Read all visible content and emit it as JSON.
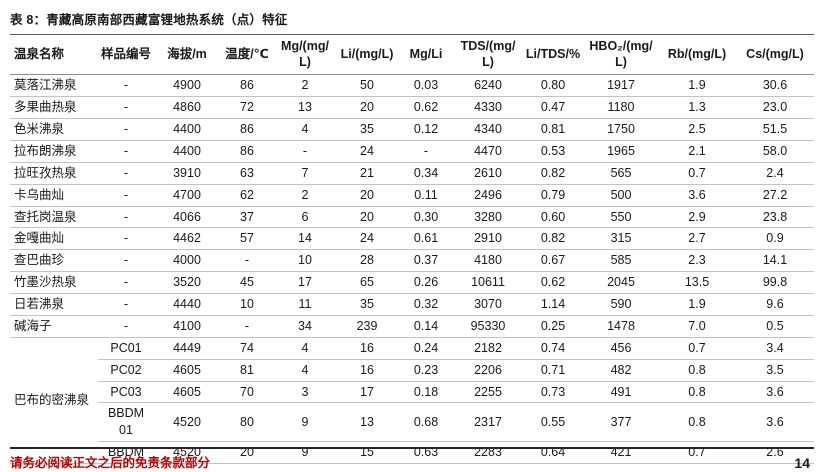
{
  "title": "表 8：青藏高原南部西藏富锂地热系统（点）特征",
  "table": {
    "headers": [
      "温泉名称",
      "样品编号",
      "海拔/m",
      "温度/℃",
      "Mg/(mg/L)",
      "Li/(mg/L)",
      "Mg/Li",
      "TDS/(mg/L)",
      "Li/TDS/%",
      "HBO₂/(mg/L)",
      "Rb/(mg/L)",
      "Cs/(mg/L)"
    ],
    "rows": [
      [
        "莫落江沸泉",
        "-",
        "4900",
        "86",
        "2",
        "50",
        "0.03",
        "6240",
        "0.80",
        "1917",
        "1.9",
        "30.6"
      ],
      [
        "多果曲热泉",
        "-",
        "4860",
        "72",
        "13",
        "20",
        "0.62",
        "4330",
        "0.47",
        "1180",
        "1.3",
        "23.0"
      ],
      [
        "色米沸泉",
        "-",
        "4400",
        "86",
        "4",
        "35",
        "0.12",
        "4340",
        "0.81",
        "1750",
        "2.5",
        "51.5"
      ],
      [
        "拉布朗沸泉",
        "-",
        "4400",
        "86",
        "-",
        "24",
        "-",
        "4470",
        "0.53",
        "1965",
        "2.1",
        "58.0"
      ],
      [
        "拉旺孜热泉",
        "-",
        "3910",
        "63",
        "7",
        "21",
        "0.34",
        "2610",
        "0.82",
        "565",
        "0.7",
        "2.4"
      ],
      [
        "卡乌曲灿",
        "-",
        "4700",
        "62",
        "2",
        "20",
        "0.11",
        "2496",
        "0.79",
        "500",
        "3.6",
        "27.2"
      ],
      [
        "查托岗温泉",
        "-",
        "4066",
        "37",
        "6",
        "20",
        "0.30",
        "3280",
        "0.60",
        "550",
        "2.9",
        "23.8"
      ],
      [
        "金嘎曲灿",
        "-",
        "4462",
        "57",
        "14",
        "24",
        "0.61",
        "2910",
        "0.82",
        "315",
        "2.7",
        "0.9"
      ],
      [
        "查巴曲珍",
        "-",
        "4000",
        "-",
        "10",
        "28",
        "0.37",
        "4180",
        "0.67",
        "585",
        "2.3",
        "14.1"
      ],
      [
        "竹墨沙热泉",
        "-",
        "3520",
        "45",
        "17",
        "65",
        "0.26",
        "10611",
        "0.62",
        "2045",
        "13.5",
        "99.8"
      ],
      [
        "日若沸泉",
        "-",
        "4440",
        "10",
        "11",
        "35",
        "0.32",
        "3070",
        "1.14",
        "590",
        "1.9",
        "9.6"
      ],
      [
        "碱海子",
        "-",
        "4100",
        "-",
        "34",
        "239",
        "0.14",
        "95330",
        "0.25",
        "1478",
        "7.0",
        "0.5"
      ]
    ],
    "group": {
      "name": "巴布的密沸泉",
      "rows": [
        [
          "PC01",
          "4449",
          "74",
          "4",
          "16",
          "0.24",
          "2182",
          "0.74",
          "456",
          "0.7",
          "3.4"
        ],
        [
          "PC02",
          "4605",
          "81",
          "4",
          "16",
          "0.23",
          "2206",
          "0.71",
          "482",
          "0.8",
          "3.5"
        ],
        [
          "PC03",
          "4605",
          "70",
          "3",
          "17",
          "0.18",
          "2255",
          "0.73",
          "491",
          "0.8",
          "3.6"
        ],
        [
          "BBDM\n01",
          "4520",
          "80",
          "9",
          "13",
          "0.68",
          "2317",
          "0.55",
          "377",
          "0.8",
          "3.6"
        ],
        [
          "BBDM",
          "4520",
          "20",
          "9",
          "15",
          "0.63",
          "2283",
          "0.64",
          "421",
          "0.7",
          "2.6"
        ]
      ]
    }
  },
  "footer": {
    "disclaimer": "请务必阅读正文之后的免责条款部分",
    "page_number": "14"
  }
}
